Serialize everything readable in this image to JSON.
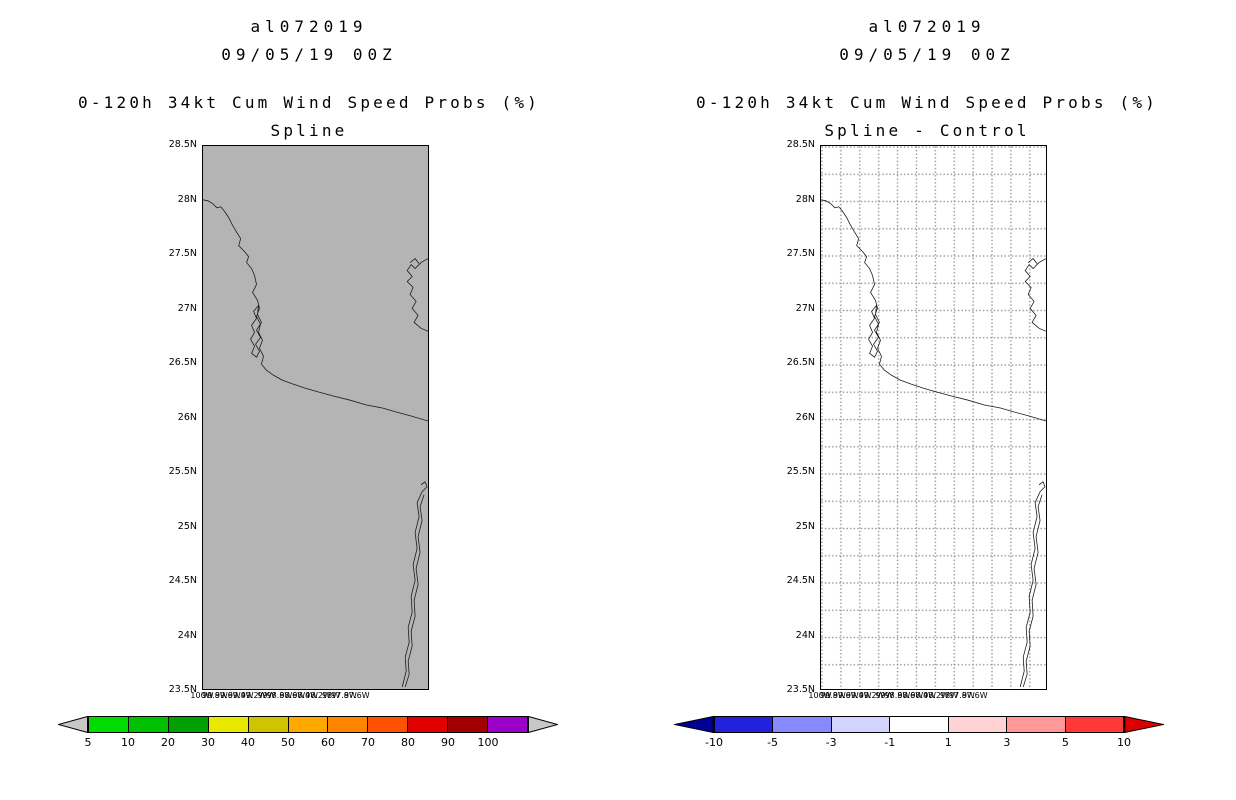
{
  "panels": [
    {
      "storm_id": "al072019",
      "init_time": "09/05/19 00Z",
      "product_line": "0-120h 34kt Cum Wind Speed Probs (%)",
      "method_line": "Spline",
      "map_background": "#b4b4b4",
      "lat_labels": [
        "28.5N",
        "28N",
        "27.5N",
        "27N",
        "26.5N",
        "26N",
        "25.5N",
        "25N",
        "24.5N",
        "24N",
        "23.5N"
      ],
      "lon_labels": [
        "100W",
        "99.8W",
        "99.6W",
        "99.4W",
        "99.2W",
        "99W",
        "98.8W",
        "98.6W",
        "98.4W",
        "98.2W",
        "98W",
        "97.8W",
        "97.6W"
      ],
      "colorbar": {
        "left_arrow_color": "#c8c8c8",
        "right_arrow_color": "#c8c8c8",
        "segments": [
          "#00dc00",
          "#00c000",
          "#00a000",
          "#e8e800",
          "#cfc400",
          "#ffa800",
          "#ff8400",
          "#ff5200",
          "#e00000",
          "#a00000",
          "#9a00c8"
        ],
        "labels": [
          "5",
          "10",
          "20",
          "30",
          "40",
          "50",
          "60",
          "70",
          "80",
          "90",
          "100"
        ]
      }
    },
    {
      "storm_id": "al072019",
      "init_time": "09/05/19 00Z",
      "product_line": "0-120h 34kt Cum Wind Speed Probs (%)",
      "method_line": "Spline - Control",
      "map_background": "#ffffff",
      "lat_labels": [
        "28.5N",
        "28N",
        "27.5N",
        "27N",
        "26.5N",
        "26N",
        "25.5N",
        "25N",
        "24.5N",
        "24N",
        "23.5N"
      ],
      "lon_labels": [
        "100W",
        "99.8W",
        "99.6W",
        "99.4W",
        "99.2W",
        "99W",
        "98.8W",
        "98.6W",
        "98.4W",
        "98.2W",
        "98W",
        "97.8W",
        "97.6W"
      ],
      "colorbar": {
        "left_arrow_color": "#000096",
        "right_arrow_color": "#dc0000",
        "segments": [
          "#2121de",
          "#8989ff",
          "#d3d3ff",
          "#ffffff",
          "#ffd3d3",
          "#ff9898",
          "#ff3838"
        ],
        "labels": [
          "-10",
          "-5",
          "-3",
          "-1",
          "1",
          "3",
          "5",
          "10"
        ]
      }
    }
  ],
  "chart_data": [
    {
      "type": "heatmap",
      "title": "al072019 09/05/19 00Z",
      "subtitle": "0-120h 34kt Cum Wind Speed Probs (%) - Spline",
      "x_ticks": [
        "100W",
        "99.8W",
        "99.6W",
        "99.4W",
        "99.2W",
        "99W",
        "98.8W",
        "98.6W",
        "98.4W",
        "98.2W",
        "98W",
        "97.8W",
        "97.6W"
      ],
      "y_ticks": [
        "28.5N",
        "28N",
        "27.5N",
        "27N",
        "26.5N",
        "26N",
        "25.5N",
        "25N",
        "24.5N",
        "24N",
        "23.5N"
      ],
      "colorbar_levels": [
        5,
        10,
        20,
        30,
        40,
        50,
        60,
        70,
        80,
        90,
        100
      ],
      "colorbar_colors": [
        "#00dc00",
        "#00c000",
        "#00a000",
        "#e8e800",
        "#cfc400",
        "#ffa800",
        "#ff8400",
        "#ff5200",
        "#e00000",
        "#a00000",
        "#9a00c8"
      ],
      "visible_field": "no probability contours visible in plotted domain; gray land map with coastline only",
      "legend_position": "bottom",
      "grid": false
    },
    {
      "type": "heatmap",
      "title": "al072019 09/05/19 00Z",
      "subtitle": "0-120h 34kt Cum Wind Speed Probs (%) - Spline - Control",
      "x_ticks": [
        "100W",
        "99.8W",
        "99.6W",
        "99.4W",
        "99.2W",
        "99W",
        "98.8W",
        "98.6W",
        "98.4W",
        "98.2W",
        "98W",
        "97.8W",
        "97.6W"
      ],
      "y_ticks": [
        "28.5N",
        "28N",
        "27.5N",
        "27N",
        "26.5N",
        "26N",
        "25.5N",
        "25N",
        "24.5N",
        "24N",
        "23.5N"
      ],
      "colorbar_levels": [
        -10,
        -5,
        -3,
        -1,
        1,
        3,
        5,
        10
      ],
      "colorbar_colors": [
        "#2121de",
        "#8989ff",
        "#d3d3ff",
        "#ffffff",
        "#ffd3d3",
        "#ff9898",
        "#ff3838"
      ],
      "visible_field": "no difference contours visible in plotted domain; white map with dotted lat/lon grid and coastline",
      "legend_position": "bottom",
      "grid": true
    }
  ]
}
